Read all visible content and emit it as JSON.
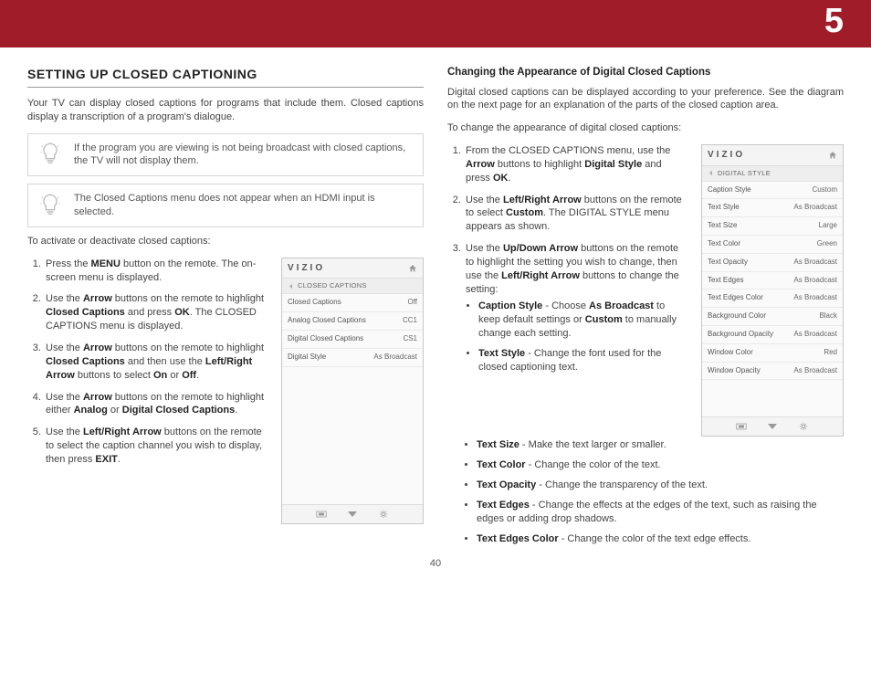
{
  "chapter": "5",
  "page_number": "40",
  "left": {
    "heading": "SETTING UP CLOSED CAPTIONING",
    "intro": "Your TV can display closed captions for programs that include them. Closed captions display a transcription of a program's dialogue.",
    "tip1": "If the program you are viewing is not being broadcast with closed captions, the TV will not display them.",
    "tip2": "The Closed Captions menu does not appear when an HDMI input is selected.",
    "lead": "To activate or deactivate closed captions:"
  },
  "right": {
    "subhead": "Changing the Appearance of Digital Closed Captions",
    "intro": "Digital closed captions can be displayed according to your preference. See the diagram on the next page for an explanation of the parts of the closed caption area.",
    "lead": "To change the appearance of digital closed captions:"
  },
  "menu1": {
    "brand": "VIZIO",
    "title": "CLOSED CAPTIONS",
    "rows": [
      {
        "k": "Closed Captions",
        "v": "Off"
      },
      {
        "k": "Analog Closed Captions",
        "v": "CC1"
      },
      {
        "k": "Digital Closed Captions",
        "v": "CS1"
      },
      {
        "k": "Digital Style",
        "v": "As Broadcast"
      }
    ]
  },
  "menu2": {
    "brand": "VIZIO",
    "title": "DIGITAL STYLE",
    "rows": [
      {
        "k": "Caption Style",
        "v": "Custom"
      },
      {
        "k": "Text Style",
        "v": "As Broadcast"
      },
      {
        "k": "Text Size",
        "v": "Large"
      },
      {
        "k": "Text Color",
        "v": "Green"
      },
      {
        "k": "Text Opacity",
        "v": "As Broadcast"
      },
      {
        "k": "Text Edges",
        "v": "As Broadcast"
      },
      {
        "k": "Text Edges Color",
        "v": "As Broadcast"
      },
      {
        "k": "Background Color",
        "v": "Black"
      },
      {
        "k": "Background Opacity",
        "v": "As Broadcast"
      },
      {
        "k": "Window Color",
        "v": "Red"
      },
      {
        "k": "Window Opacity",
        "v": "As Broadcast"
      }
    ]
  }
}
